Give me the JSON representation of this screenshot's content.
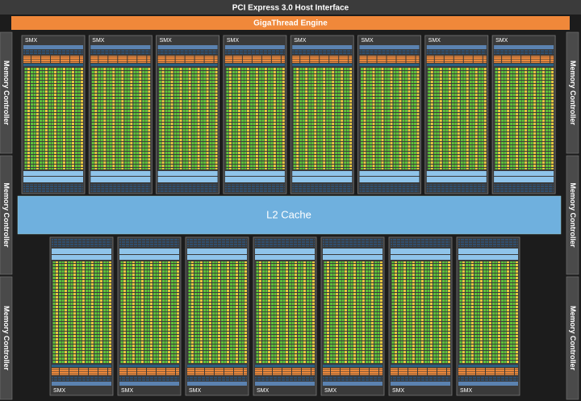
{
  "header": {
    "title": "PCI Express 3.0 Host Interface",
    "engine": "GigaThread Engine"
  },
  "memory_controllers": {
    "left": [
      "Memory Controller",
      "Memory Controller",
      "Memory Controller"
    ],
    "right": [
      "Memory Controller",
      "Memory Controller",
      "Memory Controller"
    ]
  },
  "l2_cache": "L2 Cache",
  "smx_top": [
    "SMX",
    "SMX",
    "SMX",
    "SMX",
    "SMX",
    "SMX",
    "SMX",
    "SMX"
  ],
  "smx_bottom": [
    "SMX",
    "SMX",
    "SMX",
    "SMX",
    "SMX",
    "SMX",
    "SMX"
  ]
}
